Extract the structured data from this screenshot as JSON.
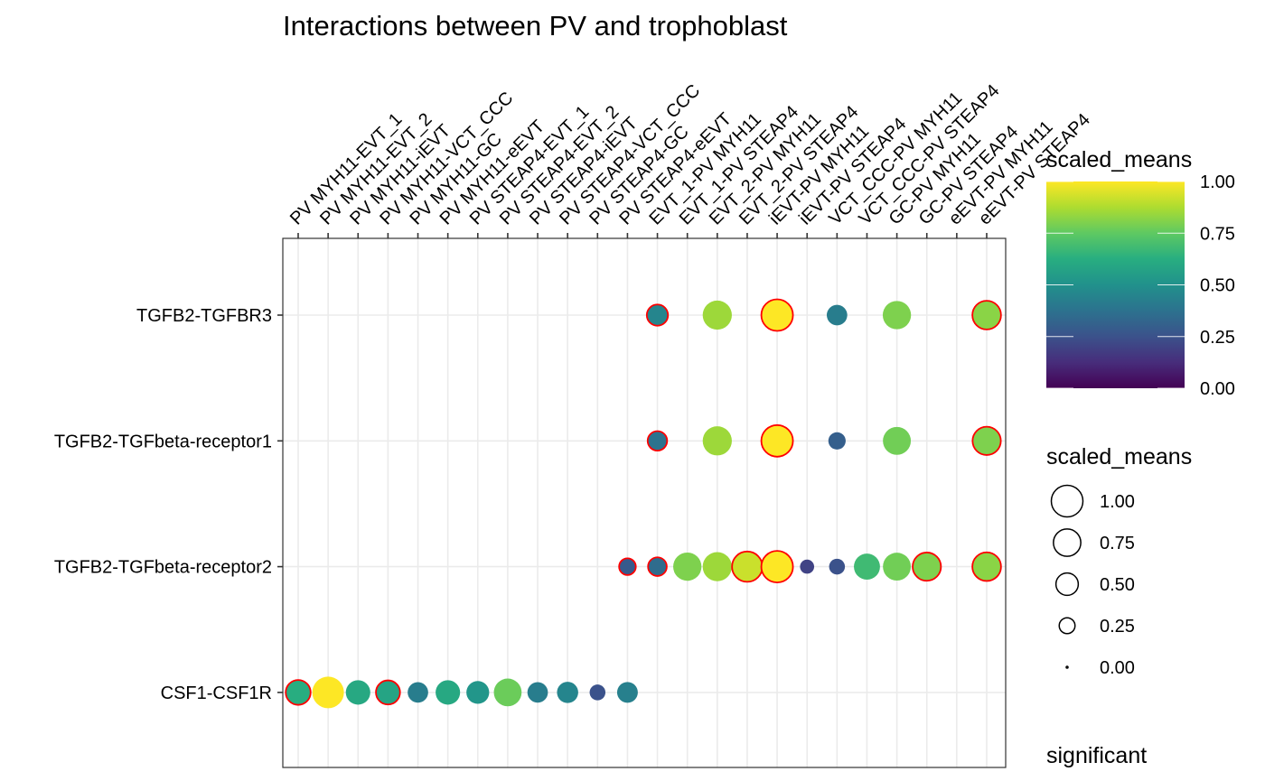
{
  "chart_data": {
    "type": "scatter",
    "title": "Interactions between PV and trophoblast",
    "xlabel": "",
    "ylabel": "",
    "x_categories": [
      "PV MYH11-EVT_1",
      "PV MYH11-EVT_2",
      "PV MYH11-iEVT",
      "PV MYH11-VCT_CCC",
      "PV MYH11-GC",
      "PV MYH11-eEVT",
      "PV STEAP4-EVT_1",
      "PV STEAP4-EVT_2",
      "PV STEAP4-iEVT",
      "PV STEAP4-VCT_CCC",
      "PV STEAP4-GC",
      "PV STEAP4-eEVT",
      "EVT_1-PV MYH11",
      "EVT_1-PV STEAP4",
      "EVT_2-PV MYH11",
      "EVT_2-PV STEAP4",
      "iEVT-PV MYH11",
      "iEVT-PV STEAP4",
      "VCT_CCC-PV MYH11",
      "VCT_CCC-PV STEAP4",
      "GC-PV MYH11",
      "GC-PV STEAP4",
      "eEVT-PV MYH11",
      "eEVT-PV STEAP4"
    ],
    "y_categories": [
      "TGFB2-TGFBR3",
      "TGFB2-TGFbeta-receptor1",
      "TGFB2-TGFbeta-receptor2",
      "CSF1-CSF1R"
    ],
    "grid": true,
    "points": [
      {
        "x": "EVT_1-PV MYH11",
        "y": "TGFB2-TGFBR3",
        "value": 0.45,
        "significant": true
      },
      {
        "x": "EVT_2-PV MYH11",
        "y": "TGFB2-TGFBR3",
        "value": 0.85,
        "significant": false
      },
      {
        "x": "iEVT-PV MYH11",
        "y": "TGFB2-TGFBR3",
        "value": 1.0,
        "significant": true
      },
      {
        "x": "VCT_CCC-PV MYH11",
        "y": "TGFB2-TGFBR3",
        "value": 0.42,
        "significant": false
      },
      {
        "x": "GC-PV MYH11",
        "y": "TGFB2-TGFBR3",
        "value": 0.8,
        "significant": false
      },
      {
        "x": "eEVT-PV STEAP4",
        "y": "TGFB2-TGFBR3",
        "value": 0.82,
        "significant": true
      },
      {
        "x": "EVT_1-PV MYH11",
        "y": "TGFB2-TGFbeta-receptor1",
        "value": 0.38,
        "significant": true
      },
      {
        "x": "EVT_2-PV MYH11",
        "y": "TGFB2-TGFbeta-receptor1",
        "value": 0.85,
        "significant": false
      },
      {
        "x": "iEVT-PV MYH11",
        "y": "TGFB2-TGFbeta-receptor1",
        "value": 1.0,
        "significant": true
      },
      {
        "x": "VCT_CCC-PV MYH11",
        "y": "TGFB2-TGFbeta-receptor1",
        "value": 0.3,
        "significant": false
      },
      {
        "x": "GC-PV MYH11",
        "y": "TGFB2-TGFbeta-receptor1",
        "value": 0.78,
        "significant": false
      },
      {
        "x": "eEVT-PV STEAP4",
        "y": "TGFB2-TGFbeta-receptor1",
        "value": 0.8,
        "significant": true
      },
      {
        "x": "PV STEAP4-eEVT",
        "y": "TGFB2-TGFbeta-receptor2",
        "value": 0.28,
        "significant": true
      },
      {
        "x": "EVT_1-PV MYH11",
        "y": "TGFB2-TGFbeta-receptor2",
        "value": 0.35,
        "significant": true
      },
      {
        "x": "EVT_1-PV STEAP4",
        "y": "TGFB2-TGFbeta-receptor2",
        "value": 0.8,
        "significant": false
      },
      {
        "x": "EVT_2-PV MYH11",
        "y": "TGFB2-TGFbeta-receptor2",
        "value": 0.85,
        "significant": false
      },
      {
        "x": "EVT_2-PV STEAP4",
        "y": "TGFB2-TGFbeta-receptor2",
        "value": 0.92,
        "significant": true
      },
      {
        "x": "iEVT-PV MYH11",
        "y": "TGFB2-TGFbeta-receptor2",
        "value": 1.0,
        "significant": true
      },
      {
        "x": "iEVT-PV STEAP4",
        "y": "TGFB2-TGFbeta-receptor2",
        "value": 0.2,
        "significant": false
      },
      {
        "x": "VCT_CCC-PV MYH11",
        "y": "TGFB2-TGFbeta-receptor2",
        "value": 0.25,
        "significant": false
      },
      {
        "x": "VCT_CCC-PV STEAP4",
        "y": "TGFB2-TGFbeta-receptor2",
        "value": 0.68,
        "significant": false
      },
      {
        "x": "GC-PV MYH11",
        "y": "TGFB2-TGFbeta-receptor2",
        "value": 0.78,
        "significant": false
      },
      {
        "x": "GC-PV STEAP4",
        "y": "TGFB2-TGFbeta-receptor2",
        "value": 0.8,
        "significant": true
      },
      {
        "x": "eEVT-PV STEAP4",
        "y": "TGFB2-TGFbeta-receptor2",
        "value": 0.82,
        "significant": true
      },
      {
        "x": "PV MYH11-EVT_1",
        "y": "CSF1-CSF1R",
        "value": 0.62,
        "significant": true
      },
      {
        "x": "PV MYH11-EVT_2",
        "y": "CSF1-CSF1R",
        "value": 1.0,
        "significant": false
      },
      {
        "x": "PV MYH11-iEVT",
        "y": "CSF1-CSF1R",
        "value": 0.6,
        "significant": false
      },
      {
        "x": "PV MYH11-VCT_CCC",
        "y": "CSF1-CSF1R",
        "value": 0.58,
        "significant": true
      },
      {
        "x": "PV MYH11-GC",
        "y": "CSF1-CSF1R",
        "value": 0.42,
        "significant": false
      },
      {
        "x": "PV MYH11-eEVT",
        "y": "CSF1-CSF1R",
        "value": 0.6,
        "significant": false
      },
      {
        "x": "PV STEAP4-EVT_1",
        "y": "CSF1-CSF1R",
        "value": 0.52,
        "significant": false
      },
      {
        "x": "PV STEAP4-EVT_2",
        "y": "CSF1-CSF1R",
        "value": 0.77,
        "significant": false
      },
      {
        "x": "PV STEAP4-iEVT",
        "y": "CSF1-CSF1R",
        "value": 0.42,
        "significant": false
      },
      {
        "x": "PV STEAP4-VCT_CCC",
        "y": "CSF1-CSF1R",
        "value": 0.45,
        "significant": false
      },
      {
        "x": "PV STEAP4-GC",
        "y": "CSF1-CSF1R",
        "value": 0.25,
        "significant": false
      },
      {
        "x": "PV STEAP4-eEVT",
        "y": "CSF1-CSF1R",
        "value": 0.43,
        "significant": false
      }
    ],
    "color_legend": {
      "title": "scaled_means",
      "ticks": [
        "1.00",
        "0.75",
        "0.50",
        "0.25",
        "0.00"
      ],
      "range": [
        0,
        1
      ],
      "palette": [
        "#440154",
        "#3b528b",
        "#21918c",
        "#5ec962",
        "#fde725"
      ]
    },
    "size_legend": {
      "title": "scaled_means",
      "entries": [
        {
          "label": "1.00",
          "value": 1.0
        },
        {
          "label": "0.75",
          "value": 0.75
        },
        {
          "label": "0.50",
          "value": 0.5
        },
        {
          "label": "0.25",
          "value": 0.25
        },
        {
          "label": "0.00",
          "value": 0.0
        }
      ]
    },
    "significant_legend": {
      "title": "significant"
    },
    "significant_outline_color": "#ff0000"
  }
}
